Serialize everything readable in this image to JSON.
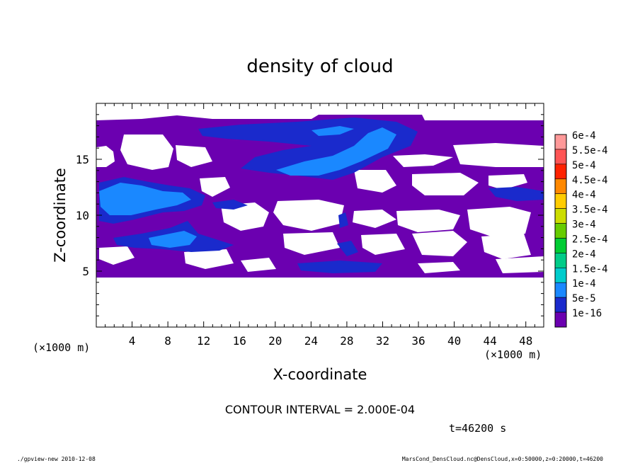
{
  "chart_data": {
    "type": "heatmap",
    "title": "density of cloud",
    "xlabel": "X-coordinate",
    "ylabel": "Z-coordinate",
    "x_unit_left": "(×1000 m)",
    "x_unit_right": "(×1000 m)",
    "xlim": [
      0,
      50
    ],
    "ylim": [
      0,
      20
    ],
    "xticks": [
      4,
      8,
      12,
      16,
      20,
      24,
      28,
      32,
      36,
      40,
      44,
      48
    ],
    "yticks": [
      5,
      10,
      15
    ],
    "colorbar": {
      "levels": [
        "6e-4",
        "5.5e-4",
        "5e-4",
        "4.5e-4",
        "4e-4",
        "3.5e-4",
        "3e-4",
        "2.5e-4",
        "2e-4",
        "1.5e-4",
        "1e-4",
        "5e-5",
        "1e-16"
      ],
      "colors": [
        "#ff9999",
        "#ff5555",
        "#ff2200",
        "#ff8800",
        "#ffcc00",
        "#ccdd00",
        "#66cc00",
        "#00cc33",
        "#00cc88",
        "#00cccc",
        "#1a88ff",
        "#1a2acc",
        "#6b00b0"
      ]
    },
    "contour_interval_text": "CONTOUR INTERVAL = 2.000E-04",
    "time_text": "t=46200 s",
    "regions": [
      {
        "level": "1e-16",
        "desc": "background",
        "x": [
          0,
          50
        ],
        "z": [
          4.5,
          18.5
        ]
      },
      {
        "level": "5e-5",
        "x": [
          12,
          37
        ],
        "z": [
          14.5,
          18.6
        ]
      },
      {
        "level": "1e-4",
        "x": [
          18,
          36
        ],
        "z": [
          14.5,
          18.2
        ]
      },
      {
        "level": "5e-5",
        "x": [
          0,
          12
        ],
        "z": [
          9.5,
          13.2
        ]
      },
      {
        "level": "1e-4",
        "x": [
          0.5,
          10.5
        ],
        "z": [
          10.2,
          13.0
        ]
      },
      {
        "level": "5e-5",
        "x": [
          3,
          14
        ],
        "z": [
          7.0,
          9.2
        ]
      },
      {
        "level": "1e-4",
        "x": [
          7,
          11
        ],
        "z": [
          7.5,
          8.6
        ]
      },
      {
        "level": "5e-5",
        "x": [
          44,
          50
        ],
        "z": [
          11.5,
          12.5
        ]
      },
      {
        "level": "5e-5",
        "x": [
          22,
          34
        ],
        "z": [
          5.3,
          6.4
        ]
      }
    ],
    "gaps_desc": "white holes where density below lowest level"
  },
  "footer": {
    "left": "./gpview-new   2010-12-08",
    "right": "MarsCond_DensCloud.nc@DensCloud,x=0:50000,z=0:20000,t=46200"
  }
}
